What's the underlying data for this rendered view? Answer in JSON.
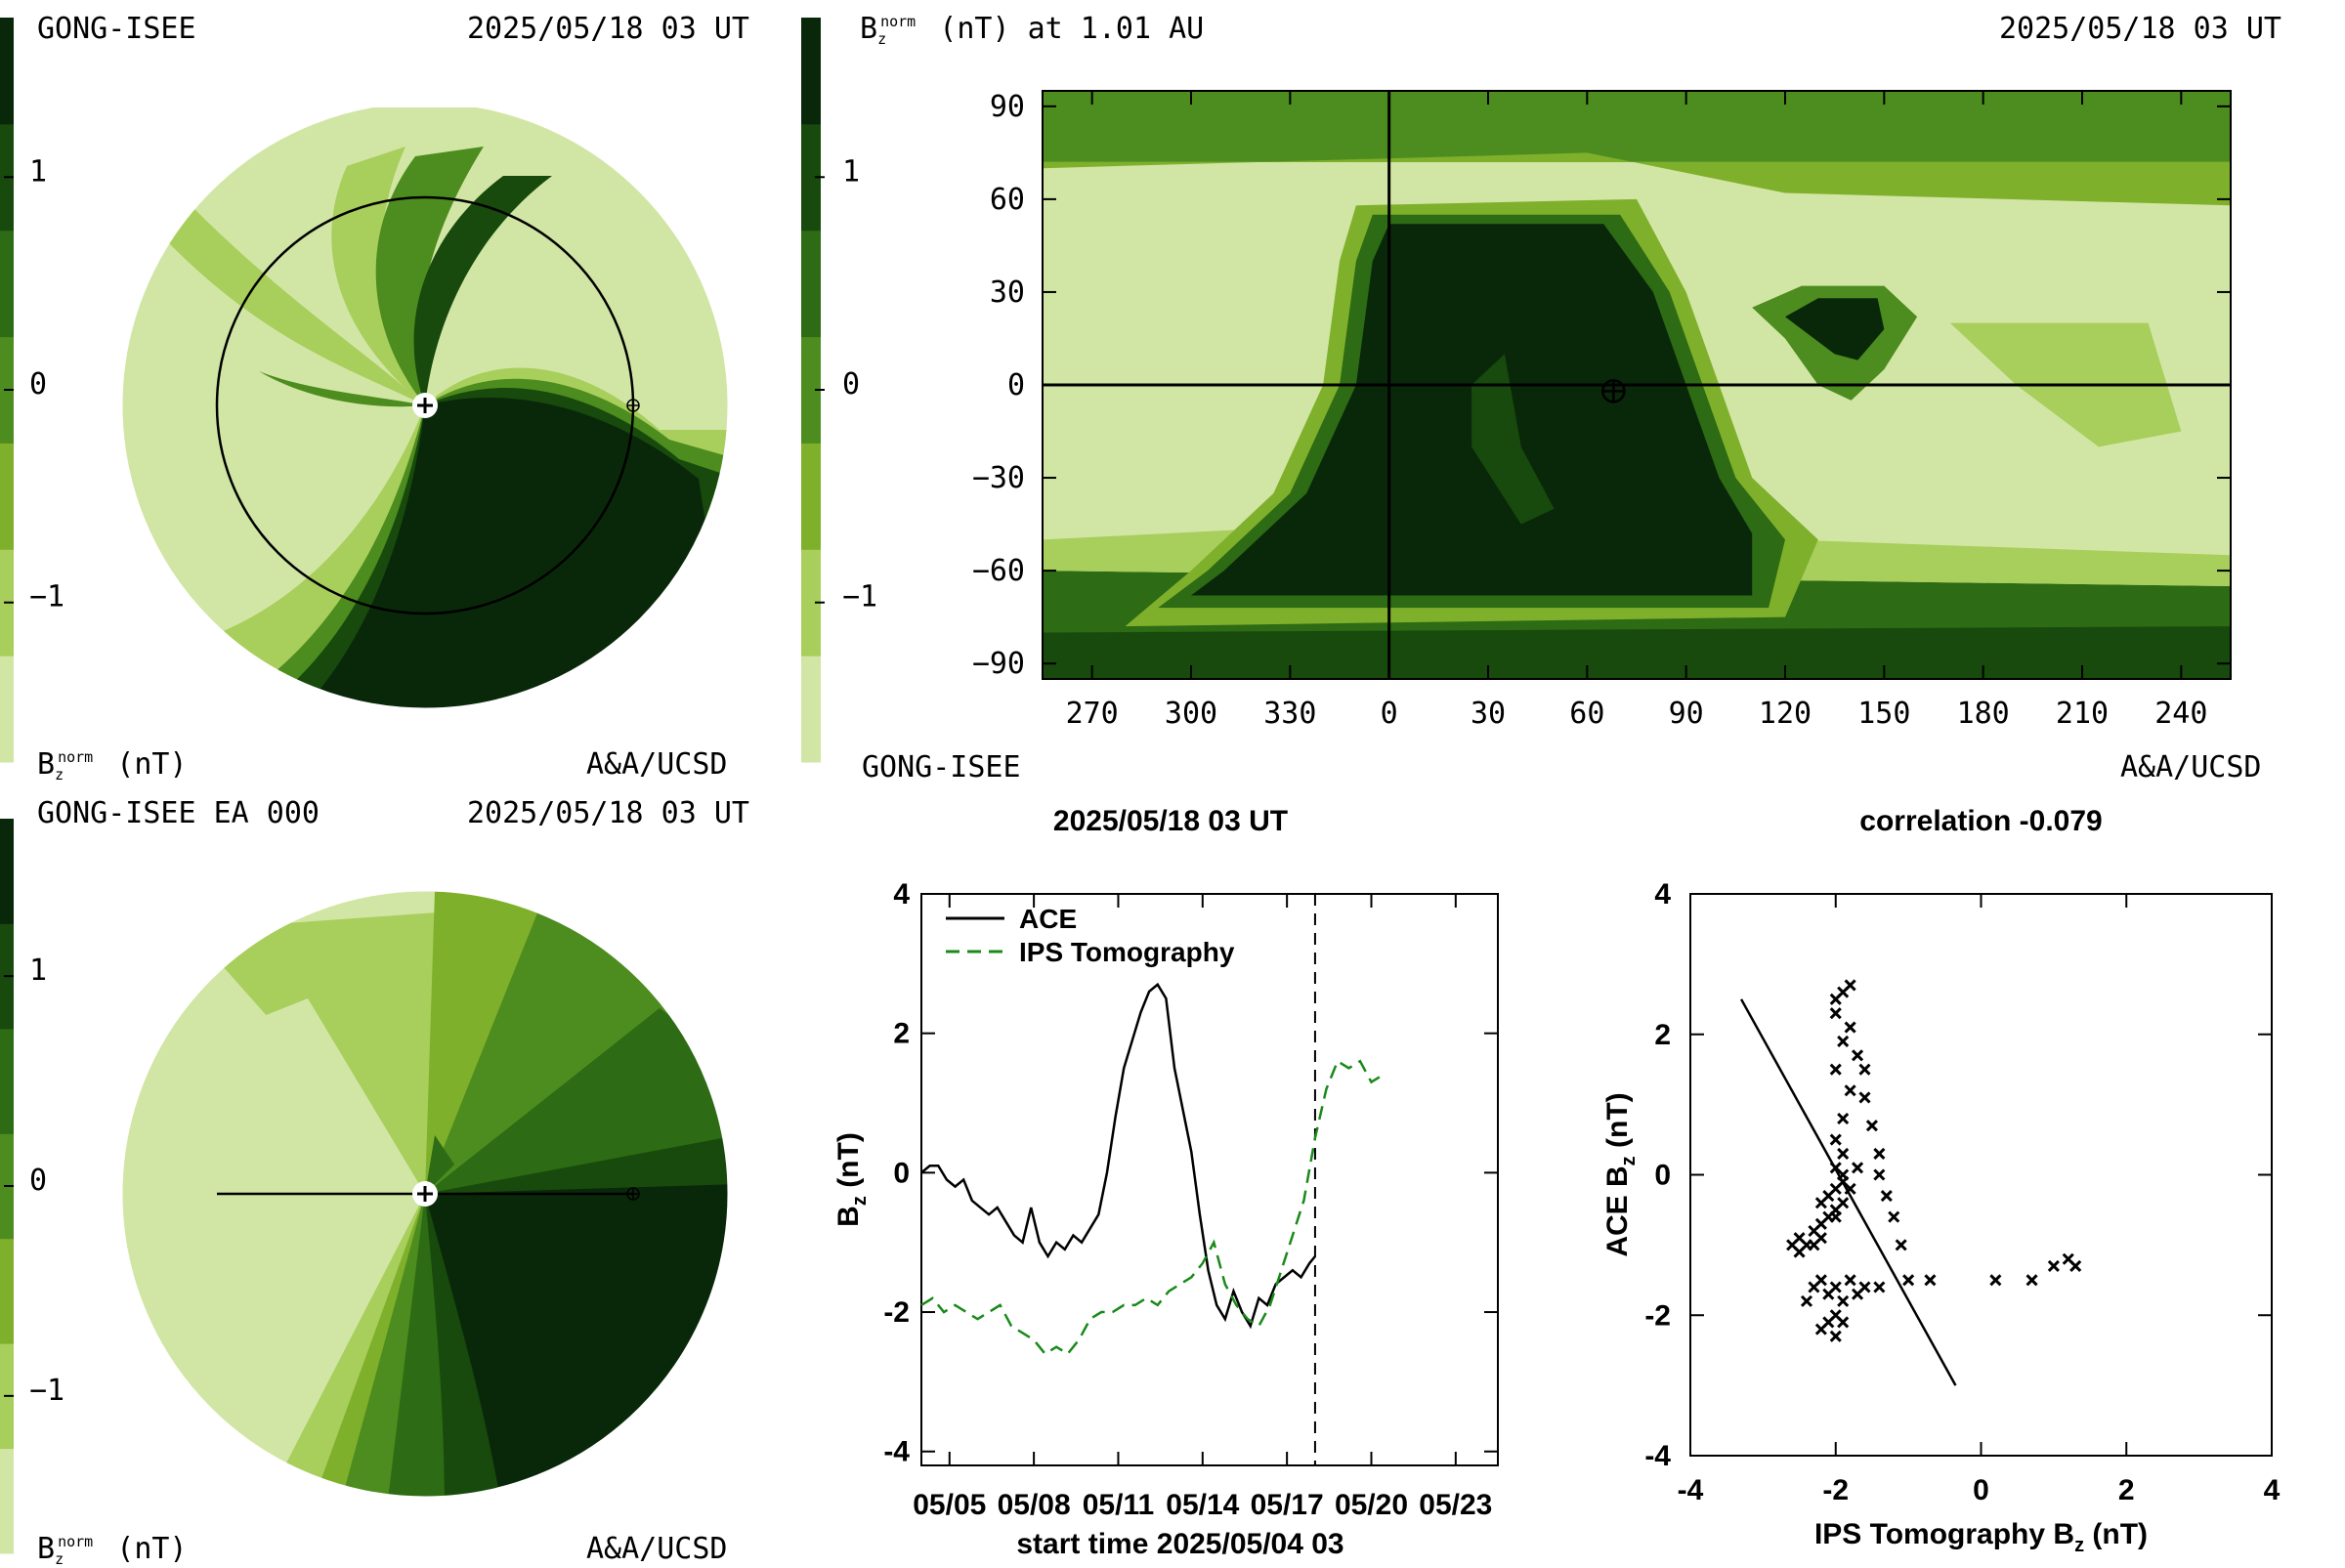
{
  "colors": {
    "levels": [
      "#d1e6a4",
      "#a8ce5c",
      "#7fb02b",
      "#4d8c1e",
      "#2d6b14",
      "#174a0c",
      "#09280a"
    ],
    "ips_series": "#1a8a1a",
    "ace_series": "#000000"
  },
  "panel_tl": {
    "title_left": "GONG-ISEE",
    "title_right": "2025/05/18 03 UT",
    "colorbar_ticks": [
      {
        "value": 1,
        "label": "1"
      },
      {
        "value": 0,
        "label": "0"
      },
      {
        "value": -1,
        "label": "−1"
      }
    ],
    "unit_label": "B",
    "unit_sub": "z",
    "unit_sup": "norm",
    "unit_tail": " (nT)",
    "credit": "A&A/UCSD"
  },
  "panel_bl": {
    "title_left": "GONG-ISEE EA 000",
    "title_right": "2025/05/18 03 UT",
    "colorbar_ticks": [
      {
        "value": 1,
        "label": "1"
      },
      {
        "value": 0,
        "label": "0"
      },
      {
        "value": -1,
        "label": "−1"
      }
    ],
    "unit_label": "B",
    "unit_sub": "z",
    "unit_sup": "norm",
    "unit_tail": " (nT)",
    "credit": "A&A/UCSD"
  },
  "panel_tr": {
    "title_prefix": "B",
    "title_sub": "z",
    "title_sup": "norm",
    "title_rest": " (nT) at 1.01 AU",
    "title_right": "2025/05/18 03 UT",
    "colorbar_ticks": [
      {
        "value": 1,
        "label": "1"
      },
      {
        "value": 0,
        "label": "0"
      },
      {
        "value": -1,
        "label": "−1"
      }
    ],
    "source": "GONG-ISEE",
    "credit": "A&A/UCSD"
  },
  "chart_data": [
    {
      "type": "heatmap",
      "title": "B_z^norm (nT) at 1.01 AU",
      "x_ticks": [
        "270",
        "300",
        "330",
        "0",
        "30",
        "60",
        "90",
        "120",
        "150",
        "180",
        "210",
        "240"
      ],
      "y_ticks": [
        90,
        60,
        30,
        0,
        -30,
        -60,
        -90
      ],
      "x_range": [
        -105,
        255
      ],
      "ylim": [
        -95,
        95
      ],
      "earth_position": {
        "longitude": 68,
        "latitude": -2
      },
      "crosshair": {
        "longitude": 0,
        "latitude": 0
      },
      "zmin": -1.5,
      "zmax": 1.5
    },
    {
      "type": "line",
      "title": "2025/05/18 03 UT",
      "xlabel": "start time 2025/05/04 03",
      "ylabel_main": "B",
      "ylabel_sub": "z",
      "ylabel_tail": " (nT)",
      "x_ticks": [
        {
          "value": 1,
          "label": "05/05"
        },
        {
          "value": 4,
          "label": "05/08"
        },
        {
          "value": 7,
          "label": "05/11"
        },
        {
          "value": 10,
          "label": "05/14"
        },
        {
          "value": 13,
          "label": "05/17"
        },
        {
          "value": 16,
          "label": "05/20"
        },
        {
          "value": 19,
          "label": "05/23"
        }
      ],
      "xlim": [
        0,
        20.5
      ],
      "y_ticks": [
        4,
        2,
        0,
        -2,
        -4
      ],
      "ylim": [
        -4.2,
        4
      ],
      "now_marker": 14,
      "series": [
        {
          "name": "ACE",
          "style": "solid",
          "x": [
            0,
            0.3,
            0.6,
            0.9,
            1.2,
            1.5,
            1.8,
            2.1,
            2.4,
            2.7,
            3.0,
            3.3,
            3.6,
            3.9,
            4.2,
            4.5,
            4.8,
            5.1,
            5.4,
            5.7,
            6.0,
            6.3,
            6.6,
            6.9,
            7.2,
            7.5,
            7.8,
            8.1,
            8.4,
            8.7,
            9.0,
            9.3,
            9.6,
            9.9,
            10.2,
            10.5,
            10.8,
            11.1,
            11.4,
            11.7,
            12.0,
            12.3,
            12.6,
            12.9,
            13.2,
            13.5,
            13.8,
            14.0
          ],
          "y": [
            0.0,
            0.1,
            0.1,
            -0.1,
            -0.2,
            -0.1,
            -0.4,
            -0.5,
            -0.6,
            -0.5,
            -0.7,
            -0.9,
            -1.0,
            -0.5,
            -1.0,
            -1.2,
            -1.0,
            -1.1,
            -0.9,
            -1.0,
            -0.8,
            -0.6,
            0.0,
            0.8,
            1.5,
            1.9,
            2.3,
            2.6,
            2.7,
            2.5,
            1.5,
            0.9,
            0.3,
            -0.6,
            -1.4,
            -1.9,
            -2.1,
            -1.7,
            -2.0,
            -2.2,
            -1.8,
            -1.9,
            -1.6,
            -1.5,
            -1.4,
            -1.5,
            -1.3,
            -1.2
          ]
        },
        {
          "name": "IPS Tomography",
          "style": "dashed",
          "x": [
            0,
            0.4,
            0.8,
            1.2,
            1.6,
            2.0,
            2.4,
            2.8,
            3.2,
            3.6,
            4.0,
            4.4,
            4.8,
            5.2,
            5.6,
            6.0,
            6.4,
            6.8,
            7.2,
            7.6,
            8.0,
            8.4,
            8.8,
            9.2,
            9.6,
            10.0,
            10.4,
            10.8,
            11.2,
            11.6,
            12.0,
            12.4,
            12.8,
            13.2,
            13.6,
            14.0,
            14.4,
            14.8,
            15.2,
            15.6,
            16.0,
            16.4
          ],
          "y": [
            -1.9,
            -1.8,
            -2.0,
            -1.9,
            -2.0,
            -2.1,
            -2.0,
            -1.9,
            -2.2,
            -2.3,
            -2.4,
            -2.6,
            -2.5,
            -2.6,
            -2.4,
            -2.1,
            -2.0,
            -2.0,
            -1.9,
            -1.9,
            -1.8,
            -1.9,
            -1.7,
            -1.6,
            -1.5,
            -1.3,
            -1.0,
            -1.6,
            -1.9,
            -2.1,
            -2.2,
            -1.9,
            -1.4,
            -0.9,
            -0.4,
            0.5,
            1.2,
            1.6,
            1.5,
            1.6,
            1.3,
            1.4
          ]
        }
      ]
    },
    {
      "type": "scatter",
      "title": "correlation -0.079",
      "xlabel_main": "IPS Tomography B",
      "xlabel_sub": "z",
      "xlabel_tail": " (nT)",
      "ylabel_main": "ACE B",
      "ylabel_sub": "z",
      "ylabel_tail": " (nT)",
      "x_ticks": [
        -4,
        -2,
        0,
        2,
        4
      ],
      "y_ticks": [
        4,
        2,
        0,
        -2,
        -4
      ],
      "xlim": [
        -4,
        4
      ],
      "ylim": [
        -4,
        4
      ],
      "fit_line": [
        [
          -3.3,
          2.5
        ],
        [
          -0.35,
          -3.0
        ]
      ],
      "points": [
        [
          -2.6,
          -1.0
        ],
        [
          -2.5,
          -0.9
        ],
        [
          -2.4,
          -1.0
        ],
        [
          -2.5,
          -1.1
        ],
        [
          -2.3,
          -1.0
        ],
        [
          -2.2,
          -0.9
        ],
        [
          -2.3,
          -0.8
        ],
        [
          -2.2,
          -0.7
        ],
        [
          -2.1,
          -0.6
        ],
        [
          -2.0,
          -0.5
        ],
        [
          -1.9,
          -0.4
        ],
        [
          -2.0,
          -0.2
        ],
        [
          -1.9,
          -0.1
        ],
        [
          -2.1,
          -0.3
        ],
        [
          -2.2,
          -0.4
        ],
        [
          -2.0,
          -0.6
        ],
        [
          -1.8,
          -0.2
        ],
        [
          -1.9,
          0.0
        ],
        [
          -1.7,
          0.1
        ],
        [
          -2.0,
          0.1
        ],
        [
          -1.9,
          0.3
        ],
        [
          -2.0,
          0.5
        ],
        [
          -1.9,
          0.8
        ],
        [
          -1.8,
          1.2
        ],
        [
          -2.0,
          1.5
        ],
        [
          -1.9,
          1.9
        ],
        [
          -2.0,
          2.3
        ],
        [
          -1.9,
          2.6
        ],
        [
          -1.8,
          2.7
        ],
        [
          -2.0,
          2.5
        ],
        [
          -1.8,
          2.1
        ],
        [
          -1.7,
          1.7
        ],
        [
          -1.6,
          1.5
        ],
        [
          -1.6,
          1.1
        ],
        [
          -1.5,
          0.7
        ],
        [
          -1.4,
          0.3
        ],
        [
          -1.4,
          0.0
        ],
        [
          -1.3,
          -0.3
        ],
        [
          -1.2,
          -0.6
        ],
        [
          -1.1,
          -1.0
        ],
        [
          -1.0,
          -1.5
        ],
        [
          -1.4,
          -1.6
        ],
        [
          -1.6,
          -1.6
        ],
        [
          -1.8,
          -1.5
        ],
        [
          -2.0,
          -1.6
        ],
        [
          -2.2,
          -1.5
        ],
        [
          -2.3,
          -1.6
        ],
        [
          -2.4,
          -1.8
        ],
        [
          -2.1,
          -1.7
        ],
        [
          -1.9,
          -1.8
        ],
        [
          -2.0,
          -2.0
        ],
        [
          -2.1,
          -2.1
        ],
        [
          -2.2,
          -2.2
        ],
        [
          -2.0,
          -2.3
        ],
        [
          -1.9,
          -2.1
        ],
        [
          -1.7,
          -1.7
        ],
        [
          -0.7,
          -1.5
        ],
        [
          0.2,
          -1.5
        ],
        [
          0.7,
          -1.5
        ],
        [
          1.0,
          -1.3
        ],
        [
          1.2,
          -1.2
        ],
        [
          1.3,
          -1.3
        ]
      ]
    }
  ]
}
